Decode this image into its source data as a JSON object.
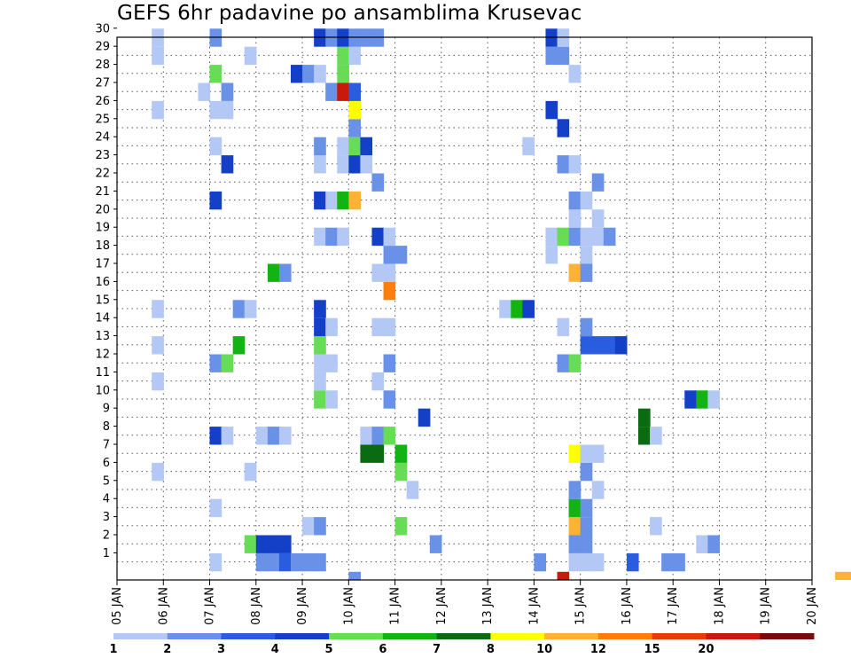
{
  "chart_data": {
    "type": "heatmap",
    "title": "GEFS 6hr padavine po ansamblima Krusevac",
    "xlabel": "",
    "ylabel": "",
    "x_ticks": [
      "05 JAN",
      "06 JAN",
      "07 JAN",
      "08 JAN",
      "09 JAN",
      "10 JAN",
      "11 JAN",
      "12 JAN",
      "13 JAN",
      "14 JAN",
      "15 JAN",
      "16 JAN",
      "17 JAN",
      "18 JAN",
      "19 JAN",
      "20 JAN"
    ],
    "y_ticks": [
      "1",
      "2",
      "3",
      "4",
      "5",
      "6",
      "7",
      "8",
      "9",
      "10",
      "11",
      "12",
      "13",
      "14",
      "15",
      "16",
      "17",
      "18",
      "19",
      "20",
      "21",
      "22",
      "23",
      "24",
      "25",
      "26",
      "27",
      "28",
      "29",
      "30"
    ],
    "xlim_days": [
      0,
      15
    ],
    "ylim_members": [
      0,
      30
    ],
    "grid": true,
    "colorbar": {
      "labels": [
        "1",
        "2",
        "3",
        "4",
        "5",
        "6",
        "7",
        "8",
        "10",
        "12",
        "15",
        "20"
      ],
      "colors": [
        "#b4c8f5",
        "#6a91e8",
        "#2a5ce0",
        "#1440c8",
        "#66dd55",
        "#12b312",
        "#0a6b12",
        "#ffff00",
        "#ffb233",
        "#ff7d0a",
        "#e83a0a",
        "#c81a0a",
        "#780c0c"
      ]
    },
    "cells": [
      [
        31,
        1,
        0
      ],
      [
        49,
        0,
        2
      ],
      [
        58,
        0,
        2
      ],
      [
        70,
        0,
        2
      ],
      [
        59,
        0,
        3
      ],
      [
        5,
        1,
        1
      ],
      [
        8,
        1,
        4
      ],
      [
        12,
        1,
        1
      ],
      [
        13,
        1,
        1
      ],
      [
        14,
        1,
        1
      ],
      [
        33,
        1,
        1
      ],
      [
        36,
        1,
        1
      ],
      [
        37,
        1,
        1
      ],
      [
        39,
        1,
        1
      ],
      [
        40,
        1,
        2
      ],
      [
        3,
        1,
        3
      ],
      [
        5,
        1,
        3
      ],
      [
        8,
        1,
        1
      ],
      [
        10,
        2,
        1
      ],
      [
        11,
        2,
        1
      ],
      [
        12,
        2,
        1
      ],
      [
        15,
        2,
        4
      ],
      [
        16,
        2,
        1
      ],
      [
        17,
        2,
        2
      ],
      [
        18,
        2,
        2
      ],
      [
        21,
        2,
        1
      ],
      [
        22,
        2,
        3
      ],
      [
        23,
        2,
        2
      ],
      [
        24,
        2,
        2
      ],
      [
        25,
        2,
        1
      ],
      [
        27,
        2,
        2
      ],
      [
        31,
        2,
        1
      ],
      [
        42,
        2,
        1
      ],
      [
        44,
        2,
        3
      ],
      [
        46,
        2,
        2
      ],
      [
        59,
        2,
        1
      ],
      [
        3,
        1,
        1
      ],
      [
        4,
        1,
        1
      ],
      [
        5,
        1,
        2
      ],
      [
        12,
        1,
        4
      ],
      [
        13,
        1,
        1
      ],
      [
        21,
        1,
        7
      ],
      [
        22,
        1,
        3
      ],
      [
        26,
        1,
        1
      ],
      [
        32,
        1,
        1
      ],
      [
        45,
        1,
        2
      ],
      [
        47,
        1,
        1
      ],
      [
        48,
        1,
        1
      ],
      [
        49,
        1,
        1
      ],
      [
        51,
        1,
        2
      ],
      [
        52,
        1,
        1
      ],
      [
        53,
        1,
        1
      ],
      [
        58,
        1,
        1
      ],
      [
        59,
        1,
        1
      ],
      [
        60,
        1,
        1
      ],
      [
        9,
        1,
        5
      ],
      [
        14,
        1,
        4
      ],
      [
        21,
        1,
        1
      ],
      [
        23,
        1,
        5
      ],
      [
        24,
        1,
        2
      ],
      [
        25,
        1,
        1
      ],
      [
        35,
        1,
        6
      ],
      [
        43,
        1,
        1
      ],
      [
        44,
        1,
        1
      ],
      [
        56,
        1,
        1
      ],
      [
        57,
        1,
        1
      ],
      [
        6,
        1,
        4
      ],
      [
        23,
        1,
        4
      ],
      [
        24,
        1,
        6
      ],
      [
        43,
        1,
        3
      ],
      [
        53,
        1,
        2
      ],
      [
        54,
        1,
        3
      ],
      [
        55,
        1,
        1
      ],
      [
        1,
        1,
        1
      ],
      [
        4,
        1,
        1
      ],
      [
        13,
        1,
        1
      ],
      [
        14,
        1,
        1
      ],
      [
        18,
        1,
        3
      ],
      [
        19,
        1,
        5
      ],
      [
        25,
        1,
        5
      ],
      [
        31,
        1,
        1
      ],
      [
        32,
        1,
        1
      ],
      [
        39,
        1,
        1
      ],
      [
        40,
        1,
        1
      ],
      [
        45,
        1,
        3
      ],
      [
        46,
        1,
        1
      ],
      [
        47,
        1,
        1
      ],
      [
        51,
        1,
        1
      ],
      [
        55,
        1,
        2
      ],
      [
        56,
        1,
        1
      ],
      [
        5,
        1,
        9
      ],
      [
        6,
        1,
        2
      ],
      [
        13,
        1,
        4
      ],
      [
        13,
        1,
        3
      ],
      [
        34,
        1,
        1
      ],
      [
        35,
        1,
        2
      ],
      [
        40,
        1,
        1
      ],
      [
        44,
        1,
        1
      ],
      [
        48,
        1,
        1
      ],
      [
        53,
        1,
        4
      ],
      [
        54,
        1,
        3
      ],
      [
        55,
        1,
        4
      ],
      [
        56,
        1,
        4
      ],
      [
        8,
        1,
        1
      ],
      [
        9,
        1,
        3
      ],
      [
        10,
        1,
        2
      ],
      [
        21,
        1,
        1
      ],
      [
        24,
        1,
        1
      ],
      [
        46,
        1,
        1
      ],
      [
        56,
        1,
        1
      ]
    ]
  }
}
